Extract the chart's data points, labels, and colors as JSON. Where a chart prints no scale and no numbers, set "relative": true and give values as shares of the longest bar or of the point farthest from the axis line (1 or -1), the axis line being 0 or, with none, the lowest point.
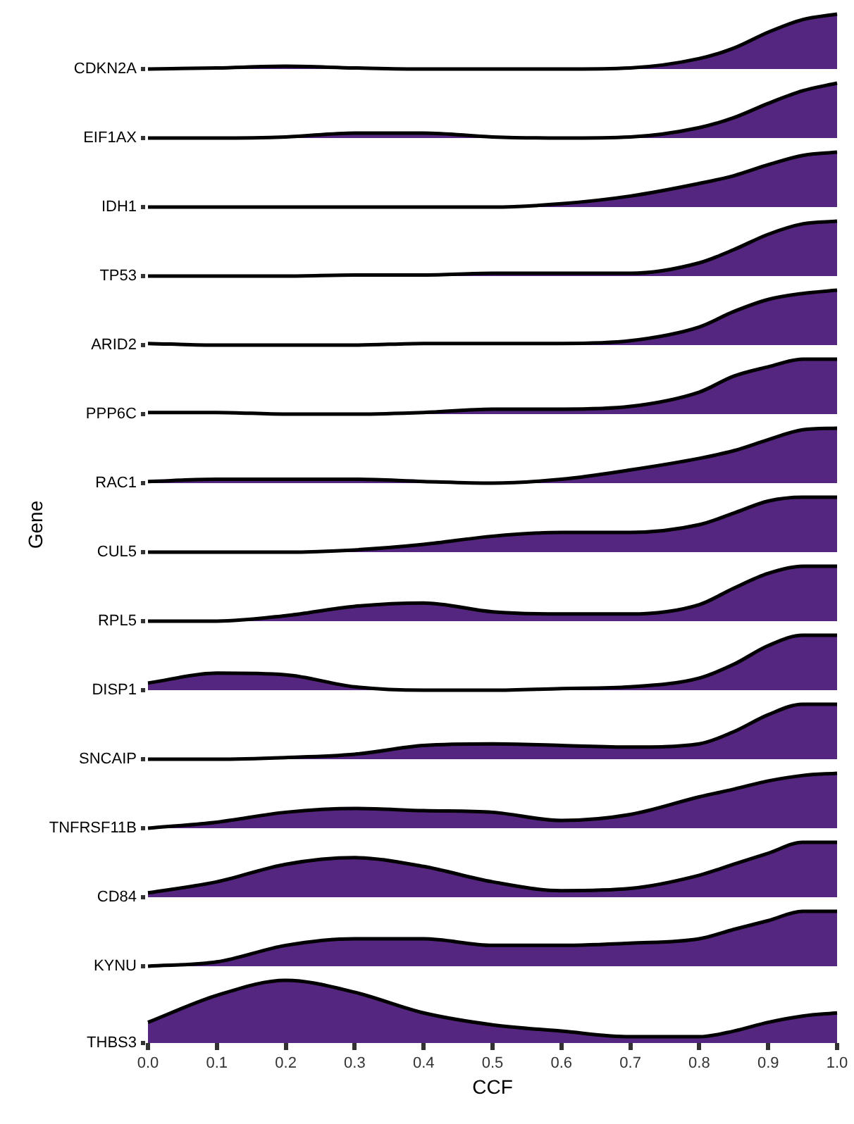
{
  "chart_data": [
    {
      "type": "area",
      "relative": true,
      "xlim": [
        0,
        1
      ],
      "tick_labels": false,
      "x": [
        0,
        0.1,
        0.2,
        0.3,
        0.4,
        0.5,
        0.6,
        0.7,
        0.8,
        0.85,
        0.9,
        0.95,
        1
      ],
      "series": [
        {
          "name": "CDKN2A",
          "color": "#55267f",
          "values": [
            0,
            0.02,
            0.05,
            0.02,
            0,
            0,
            0,
            0.02,
            0.19,
            0.38,
            0.67,
            0.9,
            1
          ]
        }
      ]
    },
    {
      "type": "area",
      "relative": true,
      "xlim": [
        0,
        1
      ],
      "tick_labels": false,
      "x": [
        0,
        0.1,
        0.2,
        0.3,
        0.4,
        0.5,
        0.6,
        0.7,
        0.8,
        0.85,
        0.9,
        0.95,
        1
      ],
      "series": [
        {
          "name": "EIF1AX",
          "color": "#55267f",
          "values": [
            0,
            0,
            0.02,
            0.09,
            0.09,
            0.02,
            0,
            0.02,
            0.19,
            0.37,
            0.63,
            0.86,
            1
          ]
        }
      ]
    },
    {
      "type": "area",
      "relative": true,
      "xlim": [
        0,
        1
      ],
      "tick_labels": false,
      "x": [
        0,
        0.1,
        0.2,
        0.3,
        0.4,
        0.5,
        0.6,
        0.7,
        0.8,
        0.85,
        0.9,
        0.95,
        1
      ],
      "series": [
        {
          "name": "IDH1",
          "color": "#55267f",
          "values": [
            0,
            0,
            0,
            0,
            0,
            0,
            0.06,
            0.2,
            0.43,
            0.57,
            0.77,
            0.94,
            1
          ]
        }
      ]
    },
    {
      "type": "area",
      "relative": true,
      "xlim": [
        0,
        1
      ],
      "tick_labels": false,
      "x": [
        0,
        0.1,
        0.2,
        0.3,
        0.4,
        0.5,
        0.6,
        0.7,
        0.8,
        0.85,
        0.9,
        0.95,
        1
      ],
      "series": [
        {
          "name": "TP53",
          "color": "#55267f",
          "values": [
            0,
            0,
            0,
            0.02,
            0.02,
            0.05,
            0.05,
            0.05,
            0.24,
            0.48,
            0.76,
            0.95,
            1
          ]
        }
      ]
    },
    {
      "type": "area",
      "relative": true,
      "xlim": [
        0,
        1
      ],
      "tick_labels": false,
      "x": [
        0,
        0.1,
        0.2,
        0.3,
        0.4,
        0.5,
        0.6,
        0.7,
        0.8,
        0.85,
        0.9,
        0.95,
        1
      ],
      "series": [
        {
          "name": "ARID2",
          "color": "#55267f",
          "values": [
            0.03,
            0,
            0,
            0,
            0.03,
            0.03,
            0.03,
            0.08,
            0.33,
            0.61,
            0.83,
            0.94,
            1
          ]
        }
      ]
    },
    {
      "type": "area",
      "relative": true,
      "xlim": [
        0,
        1
      ],
      "tick_labels": false,
      "x": [
        0,
        0.1,
        0.2,
        0.3,
        0.4,
        0.5,
        0.6,
        0.7,
        0.8,
        0.85,
        0.9,
        0.95,
        1
      ],
      "series": [
        {
          "name": "PPP6C",
          "color": "#55267f",
          "values": [
            0.03,
            0.03,
            0,
            0,
            0.03,
            0.09,
            0.09,
            0.14,
            0.4,
            0.69,
            0.86,
            1,
            1
          ]
        }
      ]
    },
    {
      "type": "area",
      "relative": true,
      "xlim": [
        0,
        1
      ],
      "tick_labels": false,
      "x": [
        0,
        0.1,
        0.2,
        0.3,
        0.4,
        0.5,
        0.6,
        0.7,
        0.8,
        0.85,
        0.9,
        0.95,
        1
      ],
      "series": [
        {
          "name": "RAC1",
          "color": "#55267f",
          "values": [
            0.03,
            0.07,
            0.07,
            0.07,
            0.03,
            0,
            0.07,
            0.24,
            0.45,
            0.59,
            0.79,
            0.97,
            1
          ]
        }
      ]
    },
    {
      "type": "area",
      "relative": true,
      "xlim": [
        0,
        1
      ],
      "tick_labels": false,
      "ylabel": "Gene",
      "x": [
        0,
        0.1,
        0.2,
        0.3,
        0.4,
        0.5,
        0.6,
        0.7,
        0.8,
        0.85,
        0.9,
        0.95,
        1
      ],
      "series": [
        {
          "name": "CUL5",
          "color": "#55267f",
          "values": [
            0,
            0,
            0,
            0.04,
            0.14,
            0.29,
            0.36,
            0.36,
            0.5,
            0.71,
            0.93,
            1,
            1
          ]
        }
      ]
    },
    {
      "type": "area",
      "relative": true,
      "xlim": [
        0,
        1
      ],
      "tick_labels": false,
      "x": [
        0,
        0.1,
        0.2,
        0.3,
        0.4,
        0.5,
        0.6,
        0.7,
        0.8,
        0.85,
        0.9,
        0.95,
        1
      ],
      "series": [
        {
          "name": "RPL5",
          "color": "#55267f",
          "values": [
            0,
            0,
            0.1,
            0.27,
            0.33,
            0.17,
            0.13,
            0.13,
            0.3,
            0.6,
            0.87,
            1,
            1
          ]
        }
      ]
    },
    {
      "type": "area",
      "relative": true,
      "xlim": [
        0,
        1
      ],
      "tick_labels": false,
      "x": [
        0,
        0.1,
        0.2,
        0.3,
        0.4,
        0.5,
        0.6,
        0.7,
        0.8,
        0.85,
        0.9,
        0.95,
        1
      ],
      "series": [
        {
          "name": "DISP1",
          "color": "#55267f",
          "values": [
            0.13,
            0.31,
            0.28,
            0.06,
            0,
            0,
            0.03,
            0.06,
            0.22,
            0.47,
            0.81,
            1,
            1
          ]
        }
      ]
    },
    {
      "type": "area",
      "relative": true,
      "xlim": [
        0,
        1
      ],
      "tick_labels": false,
      "x": [
        0,
        0.1,
        0.2,
        0.3,
        0.4,
        0.5,
        0.6,
        0.7,
        0.8,
        0.85,
        0.9,
        0.95,
        1
      ],
      "series": [
        {
          "name": "SNCAIP",
          "color": "#55267f",
          "values": [
            0,
            0,
            0.03,
            0.09,
            0.25,
            0.28,
            0.25,
            0.22,
            0.28,
            0.5,
            0.81,
            1,
            1
          ]
        }
      ]
    },
    {
      "type": "area",
      "relative": true,
      "xlim": [
        0,
        1
      ],
      "tick_labels": false,
      "x": [
        0,
        0.1,
        0.2,
        0.3,
        0.4,
        0.5,
        0.6,
        0.7,
        0.8,
        0.85,
        0.9,
        0.95,
        1
      ],
      "series": [
        {
          "name": "TNFRSF11B",
          "color": "#55267f",
          "values": [
            0,
            0.11,
            0.29,
            0.36,
            0.32,
            0.29,
            0.14,
            0.25,
            0.57,
            0.71,
            0.86,
            0.96,
            1
          ]
        }
      ]
    },
    {
      "type": "area",
      "relative": true,
      "xlim": [
        0,
        1
      ],
      "tick_labels": false,
      "x": [
        0,
        0.1,
        0.2,
        0.3,
        0.4,
        0.5,
        0.6,
        0.7,
        0.8,
        0.85,
        0.9,
        0.95,
        1
      ],
      "series": [
        {
          "name": "CD84",
          "color": "#55267f",
          "values": [
            0.08,
            0.28,
            0.6,
            0.72,
            0.56,
            0.28,
            0.12,
            0.16,
            0.4,
            0.6,
            0.8,
            1,
            1
          ]
        }
      ]
    },
    {
      "type": "area",
      "relative": true,
      "xlim": [
        0,
        1
      ],
      "tick_labels": false,
      "x": [
        0,
        0.1,
        0.2,
        0.3,
        0.4,
        0.5,
        0.6,
        0.7,
        0.8,
        0.85,
        0.9,
        0.95,
        1
      ],
      "series": [
        {
          "name": "KYNU",
          "color": "#55267f",
          "values": [
            0,
            0.08,
            0.38,
            0.5,
            0.5,
            0.38,
            0.38,
            0.42,
            0.5,
            0.67,
            0.83,
            1,
            1
          ]
        }
      ]
    },
    {
      "type": "area",
      "relative": true,
      "xlim": [
        0,
        1
      ],
      "xticks": [
        {
          "value": 0,
          "label": "0.0"
        },
        0.1,
        0.2,
        0.3,
        0.4,
        0.5,
        0.6,
        0.7,
        0.8,
        0.9,
        {
          "value": 1,
          "label": "1.0"
        }
      ],
      "tick_labels": "x",
      "xlabel": "CCF",
      "x": [
        0,
        0.1,
        0.2,
        0.3,
        0.4,
        0.5,
        0.6,
        0.7,
        0.8,
        0.85,
        0.9,
        0.95,
        1
      ],
      "series": [
        {
          "name": "THBS3",
          "color": "#55267f",
          "values": [
            0.33,
            0.76,
            1,
            0.81,
            0.48,
            0.29,
            0.19,
            0.1,
            0.1,
            0.19,
            0.33,
            0.43,
            0.48
          ]
        }
      ]
    }
  ]
}
